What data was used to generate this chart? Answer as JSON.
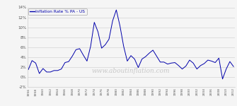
{
  "legend_label": "Inflation Rate % PA - US",
  "line_color": "#0000aa",
  "background_color": "#f5f5f5",
  "watermark": "www.aboutinflation.com",
  "watermark_color": "#cccccc",
  "tick_color": "#555555",
  "grid_color": "#cccccc",
  "ylim": [
    -2,
    14
  ],
  "yticks": [
    -2,
    0,
    2,
    4,
    6,
    8,
    10,
    12,
    14
  ],
  "ytick_labels": [
    "-2%",
    "0%",
    "2%",
    "4%",
    "6%",
    "8%",
    "10%",
    "12%",
    "14%"
  ],
  "years": [
    1956,
    1957,
    1958,
    1959,
    1960,
    1961,
    1962,
    1963,
    1964,
    1965,
    1966,
    1967,
    1968,
    1969,
    1970,
    1971,
    1972,
    1973,
    1974,
    1975,
    1976,
    1977,
    1978,
    1979,
    1980,
    1981,
    1982,
    1983,
    1984,
    1985,
    1986,
    1987,
    1988,
    1989,
    1990,
    1991,
    1992,
    1993,
    1994,
    1995,
    1996,
    1997,
    1998,
    1999,
    2000,
    2001,
    2002,
    2003,
    2004,
    2005,
    2006,
    2007,
    2008,
    2009,
    2010,
    2011,
    2012
  ],
  "values": [
    1.5,
    3.3,
    2.8,
    0.7,
    1.7,
    1.0,
    1.0,
    1.3,
    1.3,
    1.6,
    2.9,
    3.1,
    4.2,
    5.5,
    5.7,
    4.4,
    3.2,
    6.2,
    11.0,
    9.1,
    5.8,
    6.5,
    7.6,
    11.3,
    13.5,
    10.3,
    6.2,
    3.2,
    4.3,
    3.6,
    1.9,
    3.6,
    4.1,
    4.8,
    5.4,
    4.2,
    3.0,
    3.0,
    2.6,
    2.8,
    2.9,
    2.3,
    1.6,
    2.2,
    3.4,
    2.8,
    1.6,
    2.3,
    2.7,
    3.4,
    3.2,
    2.9,
    3.8,
    -0.4,
    1.6,
    3.1,
    2.1
  ]
}
